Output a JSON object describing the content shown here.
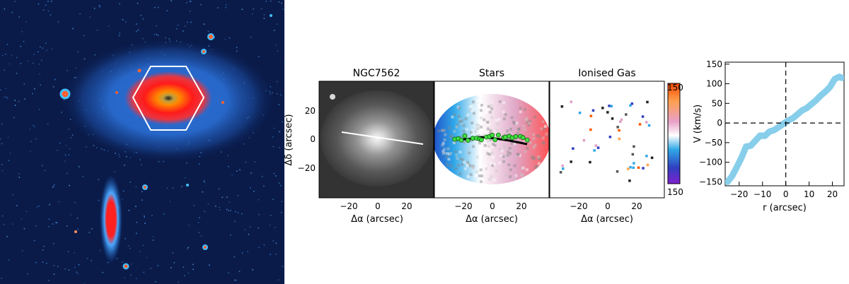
{
  "panels": {
    "ngc": {
      "title": "NGC7562",
      "xlabel": "Δα  (arcsec)",
      "ylabel": "Δδ  (arcsec)",
      "xticks": [
        "−20",
        "0",
        "20"
      ],
      "yticks": [
        "20",
        "0",
        "−20"
      ]
    },
    "stars": {
      "title": "Stars",
      "xlabel": "Δα  (arcsec)",
      "xticks": [
        "−20",
        "0",
        "20"
      ]
    },
    "gas": {
      "title": "Ionised Gas",
      "xlabel": "Δα  (arcsec)",
      "xticks": [
        "−20",
        "0",
        "20"
      ]
    },
    "colorbar": {
      "label": "V  (km/s)",
      "max_label": "150",
      "min_label": "150",
      "colors": [
        "#ff5a00",
        "#ffa64d",
        "#e0a0c8",
        "#ffffff",
        "#30a8e8",
        "#3040c0",
        "#8020d0"
      ]
    }
  },
  "chart_data": {
    "type": "line",
    "xlabel": "r (arcsec)",
    "ylabel": "V (km/s)",
    "xlim": [
      -26,
      25
    ],
    "ylim": [
      -160,
      155
    ],
    "xticks": [
      -20,
      -10,
      0,
      10,
      20
    ],
    "yticks": [
      -150,
      -100,
      -50,
      0,
      50,
      100,
      150
    ],
    "series": [
      {
        "color": "#87ceeb",
        "x": [
          -25,
          -23,
          -21,
          -19,
          -17,
          -15,
          -13,
          -11,
          -9,
          -7,
          -5,
          -3,
          -1,
          0,
          1,
          3,
          5,
          7,
          9,
          11,
          13,
          15,
          17,
          19,
          21,
          23,
          24
        ],
        "values": [
          -150,
          -135,
          -112,
          -88,
          -60,
          -58,
          -45,
          -32,
          -33,
          -22,
          -18,
          -10,
          -2,
          2,
          6,
          12,
          22,
          32,
          38,
          48,
          58,
          70,
          80,
          92,
          112,
          118,
          115
        ]
      }
    ],
    "reference_lines": {
      "x": 0,
      "y": 0,
      "style": "dashed"
    }
  }
}
